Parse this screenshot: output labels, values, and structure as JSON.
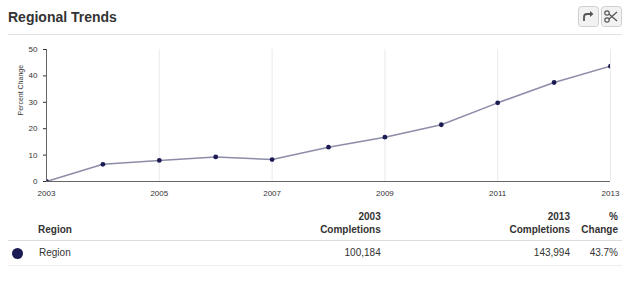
{
  "chart_data": {
    "type": "line",
    "title": "Regional Trends",
    "y_label": "Percent Change",
    "x": [
      2003,
      2004,
      2005,
      2006,
      2007,
      2008,
      2009,
      2010,
      2011,
      2012,
      2013
    ],
    "series": [
      {
        "name": "Region",
        "color": "#1c1c54",
        "marker": "circle",
        "values": [
          0,
          6.5,
          8,
          9.3,
          8.3,
          13,
          16.8,
          21.5,
          29.8,
          37.5,
          43.7
        ]
      }
    ],
    "xlim": [
      2003,
      2013
    ],
    "xticks": [
      2003,
      2005,
      2007,
      2009,
      2011,
      2013
    ],
    "ylim": [
      0,
      50
    ],
    "yticks": [
      0,
      10,
      20,
      30,
      40,
      50
    ],
    "grid": true
  },
  "table": {
    "header": [
      "Region",
      "2003 Completions",
      "2013 Completions",
      "% Change"
    ],
    "rows": [
      [
        "Region",
        "100,184",
        "143,994",
        "43.7%"
      ]
    ]
  }
}
